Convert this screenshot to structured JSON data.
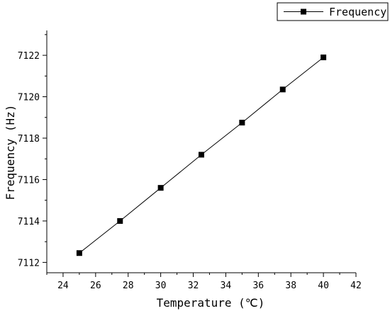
{
  "chart_data": {
    "type": "line",
    "xlabel": "Temperature (℃)",
    "ylabel": "Frequency (Hz)",
    "xlim": [
      23,
      42
    ],
    "ylim": [
      7111.5,
      7123.2
    ],
    "xticks": [
      24,
      26,
      28,
      30,
      32,
      34,
      36,
      38,
      40,
      42
    ],
    "yticks": [
      7112,
      7114,
      7116,
      7118,
      7120,
      7122
    ],
    "grid": false,
    "legend_position": "top-right",
    "series": [
      {
        "name": "Frequency",
        "color": "#000000",
        "marker": "square",
        "x": [
          25,
          27.5,
          30,
          32.5,
          35,
          37.5,
          40
        ],
        "y": [
          7112.45,
          7114.0,
          7115.6,
          7117.2,
          7118.75,
          7120.35,
          7121.9
        ]
      }
    ]
  }
}
